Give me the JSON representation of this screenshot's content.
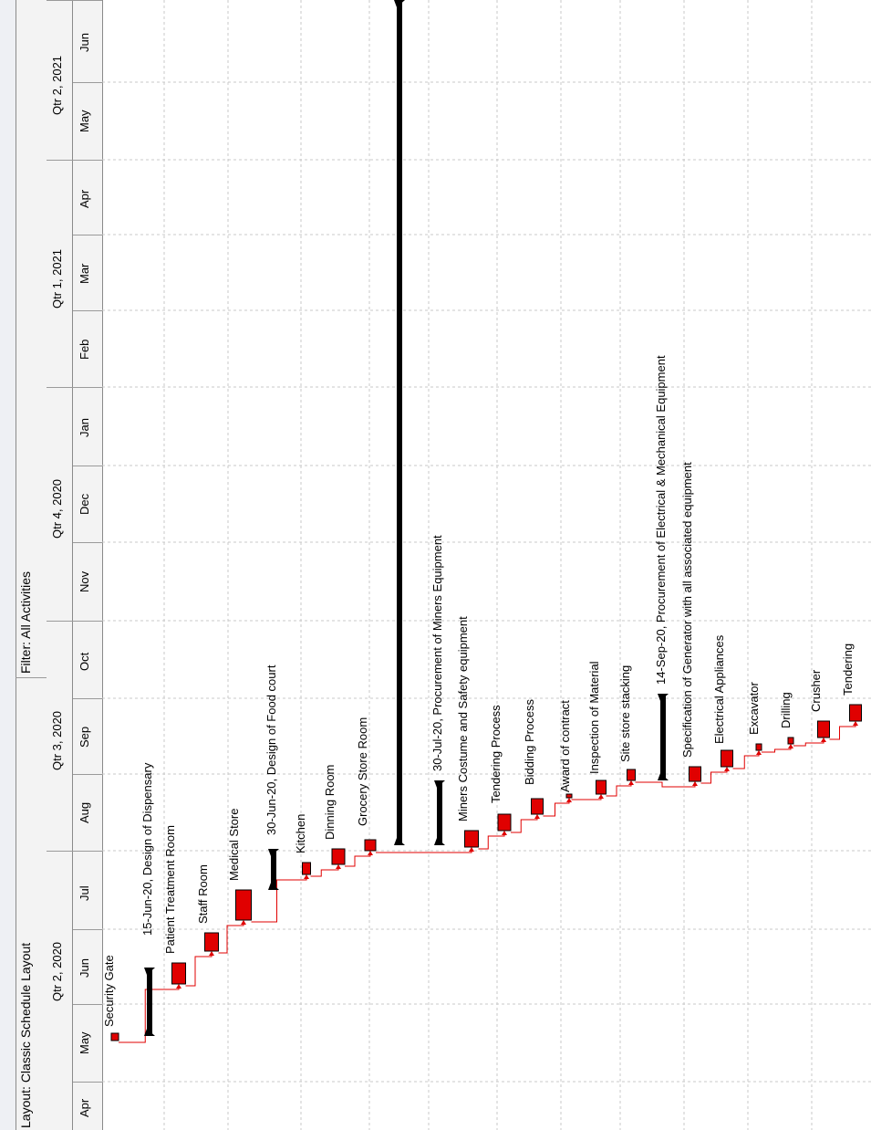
{
  "toolbar": {
    "layout_label": "Layout: Classic Schedule Layout",
    "filter_label": "Filter: All Activities"
  },
  "timescale": {
    "quarters": [
      "Qtr 2, 2020",
      "Qtr 3, 2020",
      "Qtr 4, 2020",
      "Qtr 1, 2021",
      "Qtr 2, 2021"
    ],
    "months": [
      "Apr",
      "May",
      "Jun",
      "Jul",
      "Aug",
      "Sep",
      "Oct",
      "Nov",
      "Dec",
      "Jan",
      "Feb",
      "Mar",
      "Apr",
      "May",
      "Jun"
    ]
  },
  "colors": {
    "activity_bar": "#e00000",
    "milestone": "#000000",
    "relationship": "#e00000",
    "gridline": "#c8c8c8"
  },
  "gantt": {
    "activities": [
      {
        "label": "Security Gate",
        "kind": "bar"
      },
      {
        "label": "15-Jun-20, Design of Dispensary",
        "kind": "summary"
      },
      {
        "label": "Patient Treatment Room",
        "kind": "bar"
      },
      {
        "label": "Staff Room",
        "kind": "bar"
      },
      {
        "label": "Medical Store",
        "kind": "bar"
      },
      {
        "label": "30-Jun-20, Design of Food court",
        "kind": "summary"
      },
      {
        "label": "Kitchen",
        "kind": "bar"
      },
      {
        "label": "Dinning Room",
        "kind": "bar"
      },
      {
        "label": "Grocery Store Room",
        "kind": "bar"
      },
      {
        "label": "",
        "kind": "summary"
      },
      {
        "label": "30-Jul-20, Procurement of Miners Equipment",
        "kind": "summary"
      },
      {
        "label": "Miners Costume and Safety equipment",
        "kind": "bar"
      },
      {
        "label": "Tendering Process",
        "kind": "bar"
      },
      {
        "label": "Bidding Process",
        "kind": "bar"
      },
      {
        "label": "Award of contract",
        "kind": "milestone"
      },
      {
        "label": "Inspection of Material",
        "kind": "bar"
      },
      {
        "label": "Site store stacking",
        "kind": "bar"
      },
      {
        "label": "14-Sep-20, Procurement of Electrical & Mechanical Equipment",
        "kind": "summary"
      },
      {
        "label": "Specification of Generator with all associated equipment",
        "kind": "bar"
      },
      {
        "label": "Electrical Appliances",
        "kind": "bar"
      },
      {
        "label": "Excavator",
        "kind": "bar"
      },
      {
        "label": "Drilling",
        "kind": "bar"
      },
      {
        "label": "Crusher",
        "kind": "bar"
      },
      {
        "label": "Tendering",
        "kind": "bar"
      }
    ]
  }
}
